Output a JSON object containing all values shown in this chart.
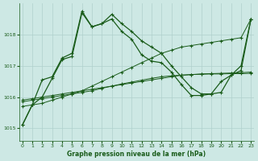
{
  "title": "Graphe pression niveau de la mer (hPa)",
  "background_color": "#cde8e4",
  "grid_color": "#b0d0cc",
  "line_color": "#1a5c1a",
  "x_ticks": [
    0,
    1,
    2,
    3,
    4,
    5,
    6,
    7,
    8,
    9,
    10,
    11,
    12,
    13,
    14,
    15,
    16,
    17,
    18,
    19,
    20,
    21,
    22,
    23
  ],
  "y_ticks": [
    1015,
    1016,
    1017,
    1018
  ],
  "ylim": [
    1014.6,
    1019.0
  ],
  "xlim": [
    -0.3,
    23.3
  ],
  "series": {
    "line1_jagged": {
      "x": [
        0,
        1,
        2,
        3,
        4,
        5,
        6,
        7,
        8,
        9,
        10,
        11,
        12,
        13,
        14,
        15,
        16,
        17,
        18,
        19,
        20,
        21,
        22,
        23
      ],
      "y": [
        1015.1,
        1015.75,
        1016.55,
        1016.65,
        1017.25,
        1017.4,
        1018.75,
        1018.25,
        1018.35,
        1018.5,
        1018.1,
        1017.85,
        1017.35,
        1017.15,
        1017.1,
        1016.8,
        1016.4,
        1016.05,
        1016.05,
        1016.1,
        1016.5,
        1016.7,
        1016.85,
        1018.5
      ]
    },
    "line2_jagged": {
      "x": [
        0,
        1,
        2,
        3,
        4,
        5,
        6,
        7,
        8,
        9,
        10,
        11,
        12,
        13,
        14,
        15,
        16,
        17,
        18,
        19,
        20,
        21,
        22,
        23
      ],
      "y": [
        1015.1,
        1015.75,
        1016.0,
        1016.6,
        1017.2,
        1017.3,
        1018.7,
        1018.25,
        1018.35,
        1018.65,
        1018.35,
        1018.1,
        1017.8,
        1017.6,
        1017.4,
        1017.0,
        1016.65,
        1016.3,
        1016.1,
        1016.1,
        1016.15,
        1016.7,
        1017.0,
        1018.5
      ]
    },
    "line3_flat": {
      "x": [
        0,
        1,
        2,
        3,
        4,
        5,
        6,
        7,
        8,
        9,
        10,
        11,
        12,
        13,
        14,
        15,
        16,
        17,
        18,
        19,
        20,
        21,
        22,
        23
      ],
      "y": [
        1015.9,
        1015.95,
        1016.0,
        1016.05,
        1016.1,
        1016.15,
        1016.2,
        1016.25,
        1016.3,
        1016.35,
        1016.4,
        1016.45,
        1016.5,
        1016.55,
        1016.6,
        1016.65,
        1016.7,
        1016.72,
        1016.74,
        1016.75,
        1016.76,
        1016.77,
        1016.78,
        1016.8
      ]
    },
    "line4_flat": {
      "x": [
        0,
        1,
        2,
        3,
        4,
        5,
        6,
        7,
        8,
        9,
        10,
        11,
        12,
        13,
        14,
        15,
        16,
        17,
        18,
        19,
        20,
        21,
        22,
        23
      ],
      "y": [
        1015.85,
        1015.9,
        1015.95,
        1016.0,
        1016.05,
        1016.1,
        1016.15,
        1016.2,
        1016.28,
        1016.35,
        1016.42,
        1016.48,
        1016.54,
        1016.6,
        1016.65,
        1016.68,
        1016.7,
        1016.72,
        1016.73,
        1016.74,
        1016.74,
        1016.75,
        1016.75,
        1016.76
      ]
    },
    "line5_diag": {
      "x": [
        0,
        1,
        2,
        3,
        4,
        5,
        6,
        7,
        8,
        9,
        10,
        11,
        12,
        13,
        14,
        15,
        16,
        17,
        18,
        19,
        20,
        21,
        22,
        23
      ],
      "y": [
        1015.7,
        1015.75,
        1015.8,
        1015.9,
        1016.0,
        1016.1,
        1016.2,
        1016.35,
        1016.5,
        1016.65,
        1016.8,
        1016.95,
        1017.1,
        1017.25,
        1017.4,
        1017.5,
        1017.6,
        1017.65,
        1017.7,
        1017.75,
        1017.8,
        1017.85,
        1017.9,
        1018.5
      ]
    }
  }
}
